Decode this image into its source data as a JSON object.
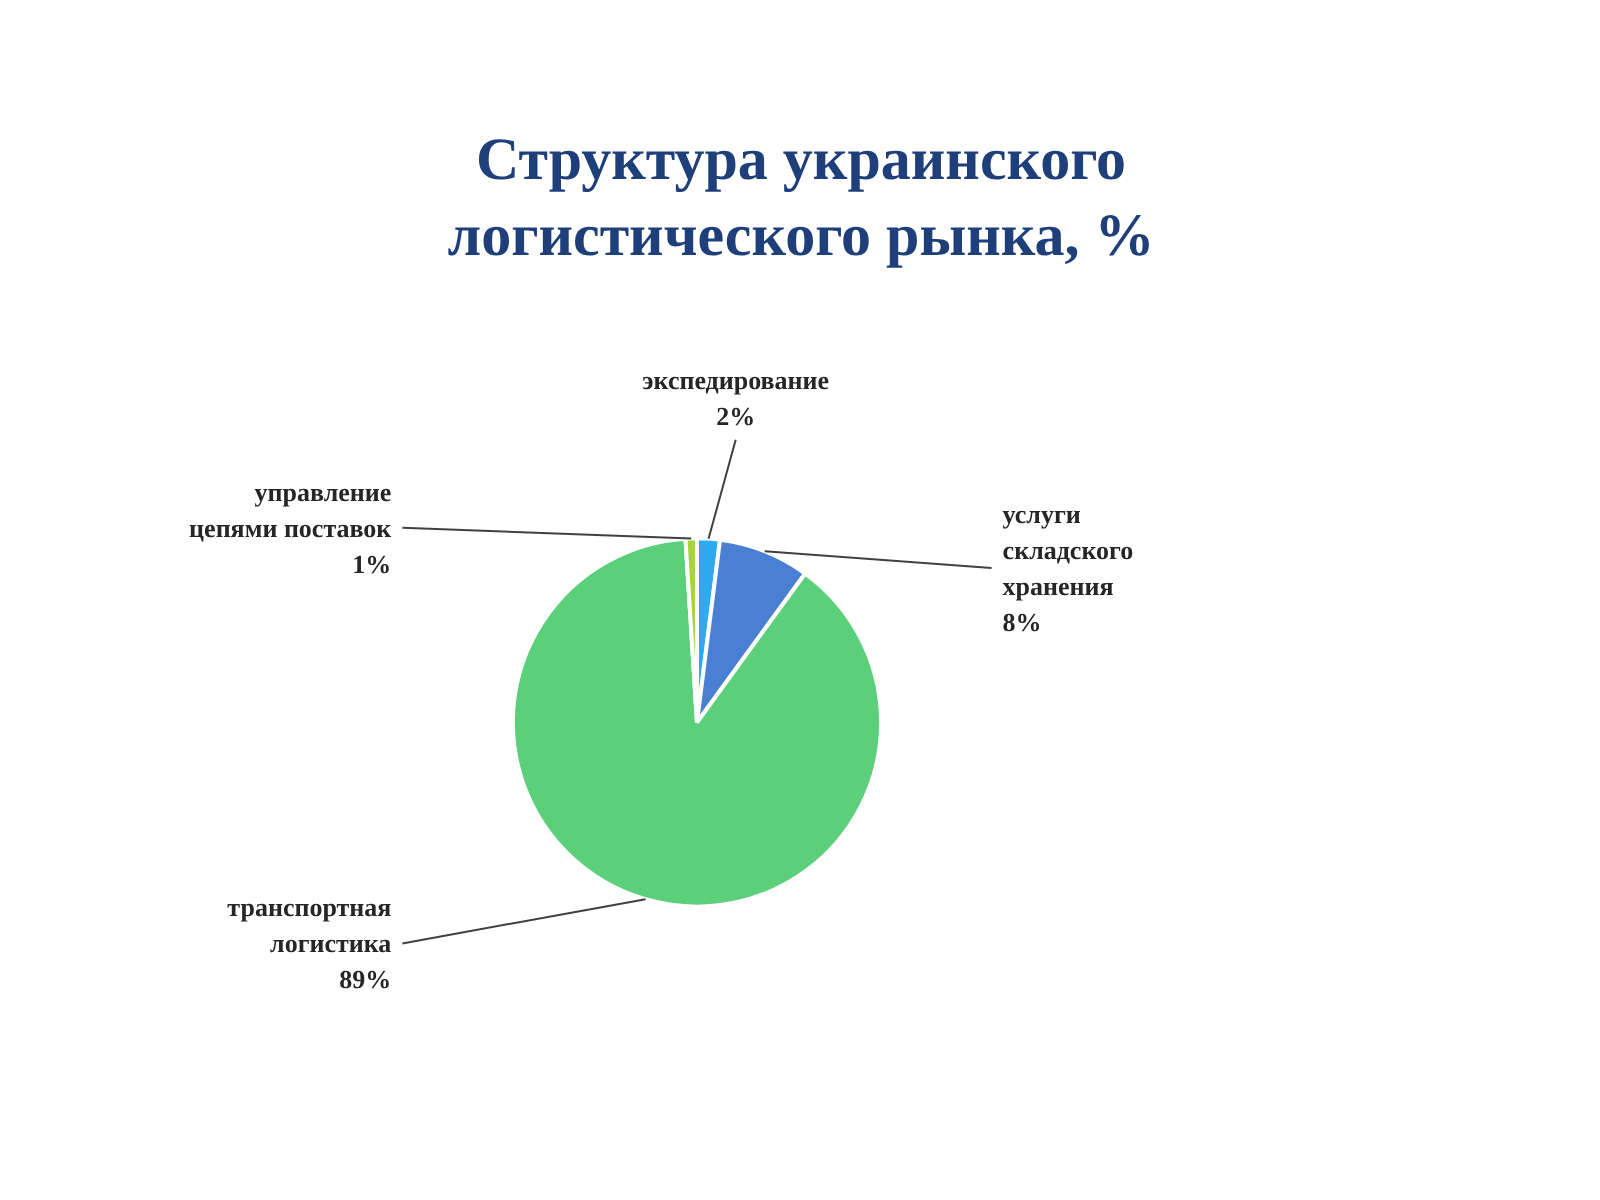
{
  "chart_data": {
    "type": "pie",
    "title": "Структура украинского логистического рынка, %",
    "categories": [
      "экспедирование",
      "услуги складского хранения",
      "транспортная логистика",
      "управление цепями поставок"
    ],
    "values": [
      2,
      8,
      89,
      1
    ],
    "colors": [
      "#2eaaf0",
      "#4a80d4",
      "#5ccf7a",
      "#a6d43c"
    ],
    "value_labels": [
      "2%",
      "8%",
      "89%",
      "1%"
    ]
  }
}
